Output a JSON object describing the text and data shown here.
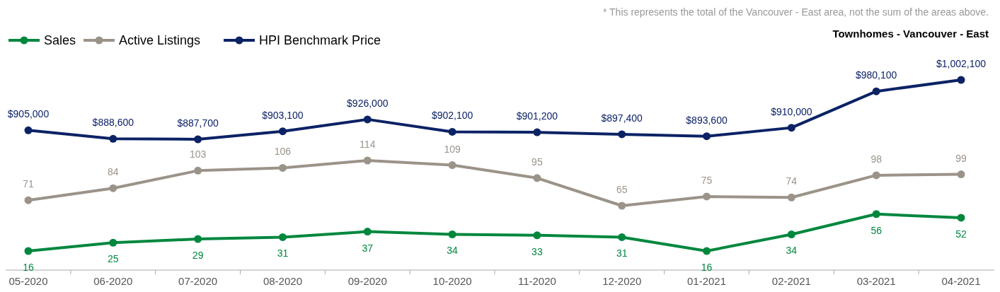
{
  "chart_data": [
    {
      "type": "line",
      "title": "Townhomes - Vancouver - East",
      "annotations": [
        "* This represents the total of the Vancouver - East area, not the sum of the areas above."
      ],
      "categories": [
        null,
        null,
        null,
        null,
        null,
        null,
        null,
        null,
        null,
        null,
        null,
        null
      ],
      "series": [
        {
          "name": "HPI Benchmark Price",
          "color": "#0b2265",
          "values": [
            905000,
            888600,
            887700,
            903100,
            926000,
            902100,
            901200,
            897400,
            893600,
            910000,
            980100,
            1002100
          ],
          "value_labels": [
            "$905,000",
            "$888,600",
            "$887,700",
            "$903,100",
            "$926,000",
            "$902,100",
            "$901,200",
            "$897,400",
            "$893,600",
            "$910,000",
            "$980,100",
            "$1,002,100"
          ]
        }
      ],
      "tick_labels": false,
      "legend": "top left",
      "marker": "circle"
    },
    {
      "type": "line",
      "categories": [
        "05-2020",
        "06-2020",
        "07-2020",
        "08-2020",
        "09-2020",
        "10-2020",
        "11-2020",
        "12-2020",
        "01-2021",
        "02-2021",
        "03-2021",
        "04-2021"
      ],
      "series": [
        {
          "name": "Sales",
          "color": "#00873e",
          "values": [
            16,
            25,
            29,
            31,
            37,
            34,
            33,
            31,
            16,
            34,
            56,
            52
          ]
        },
        {
          "name": "Active Listings",
          "color": "#9b9389",
          "values": [
            71,
            84,
            103,
            106,
            114,
            109,
            95,
            65,
            75,
            74,
            98,
            99
          ]
        }
      ],
      "tick_labels": "x",
      "data_labels": true,
      "legend": "top left",
      "marker": "circle"
    }
  ]
}
